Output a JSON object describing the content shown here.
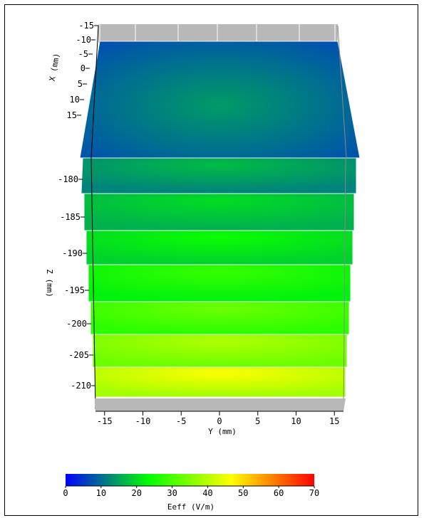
{
  "chart_data": {
    "type": "heatmap",
    "subtype": "3d-stacked-slices",
    "title": "",
    "x_axis": {
      "label": "X (mm)",
      "range": [
        -15,
        15
      ],
      "ticks": [
        "-15",
        "-10",
        "-5",
        "0",
        "5",
        "10",
        "15"
      ]
    },
    "y_axis": {
      "label": "Y (mm)",
      "range": [
        -16,
        16
      ],
      "ticks": [
        "-15",
        "-10",
        "-5",
        "0",
        "5",
        "10",
        "15"
      ]
    },
    "z_axis": {
      "label": "Z (mm)",
      "ticks": [
        "-180",
        "-185",
        "-190",
        "-195",
        "-200",
        "-205",
        "-210"
      ]
    },
    "slices": [
      {
        "z": -172,
        "edge_value": 7,
        "center_value": 14
      },
      {
        "z": -180,
        "edge_value": 12,
        "center_value": 17
      },
      {
        "z": -185,
        "edge_value": 16,
        "center_value": 20
      },
      {
        "z": -190,
        "edge_value": 19,
        "center_value": 24
      },
      {
        "z": -195,
        "edge_value": 22,
        "center_value": 28
      },
      {
        "z": -200,
        "edge_value": 27,
        "center_value": 33
      },
      {
        "z": -205,
        "edge_value": 33,
        "center_value": 39
      },
      {
        "z": -210,
        "edge_value": 38,
        "center_value": 46
      }
    ],
    "colorbar": {
      "label": "Eeff (V/m)",
      "min": 0,
      "max": 70,
      "ticks": [
        "0",
        "10",
        "20",
        "30",
        "40",
        "50",
        "60",
        "70"
      ],
      "colors": [
        "#0000ff",
        "#00ff00",
        "#ffff00",
        "#ff0000"
      ]
    },
    "grid": true,
    "legend": "colorbar-bottom"
  }
}
